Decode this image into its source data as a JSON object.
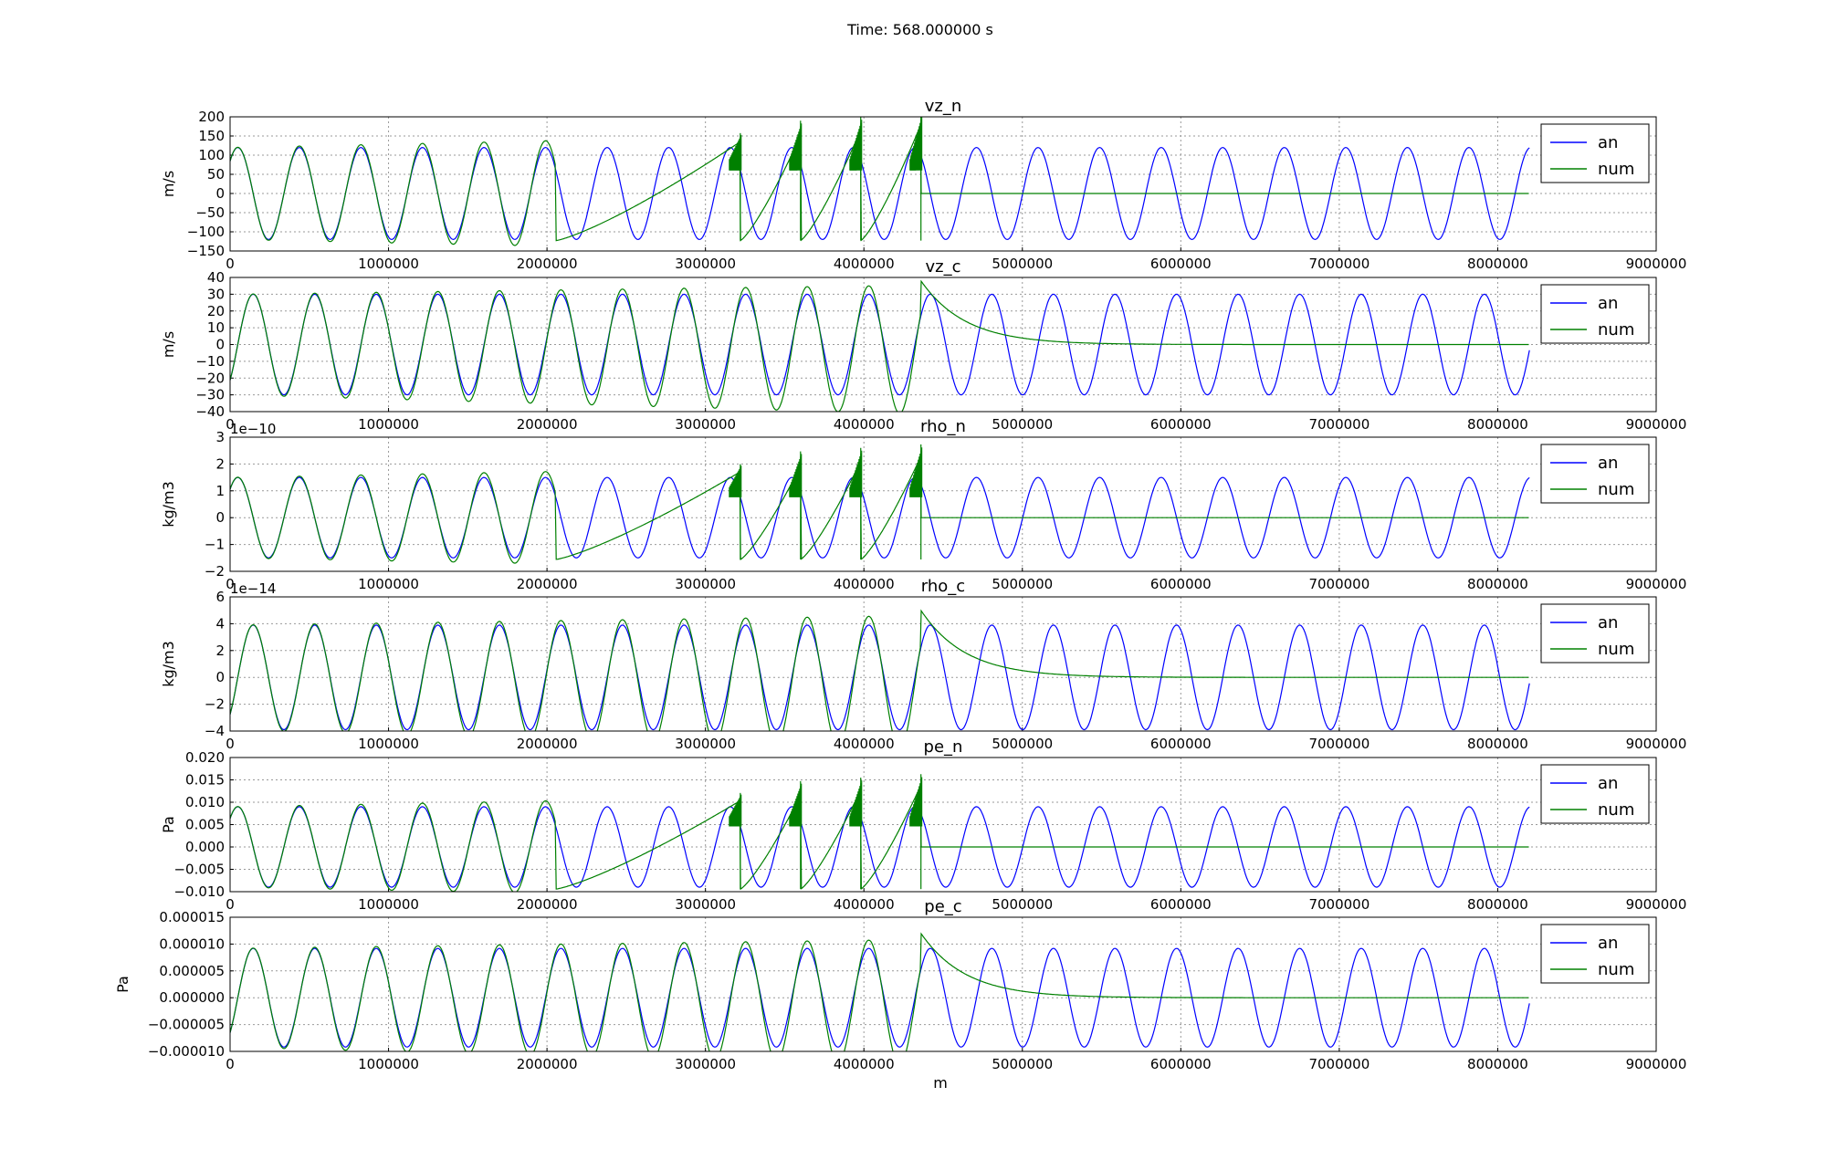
{
  "suptitle": "Time: 568.000000 s",
  "xlabel": "m",
  "xticks": [
    "0",
    "1000000",
    "2000000",
    "3000000",
    "4000000",
    "5000000",
    "6000000",
    "7000000",
    "8000000",
    "9000000"
  ],
  "legend_labels": [
    "an",
    "num"
  ],
  "colors": {
    "an": "#0000ff",
    "num": "#008000",
    "grid": "#999999"
  },
  "chart_data": [
    {
      "type": "line",
      "title": "vz_n",
      "ylabel": "m/s",
      "offset_label": "",
      "xlim": [
        0,
        9000000
      ],
      "ylim": [
        -150,
        200
      ],
      "yticks": [
        "−150",
        "−100",
        "−50",
        "0",
        "50",
        "100",
        "150",
        "200"
      ],
      "grid": true,
      "legend": "top-right",
      "series": [
        {
          "name": "an",
          "amplitude": 120,
          "wavelength": 388500,
          "phase_deg": 45,
          "x_end": 8200000
        },
        {
          "name": "num",
          "model": "steepened",
          "front_x": 4360000,
          "peak": 150,
          "spike": 200,
          "shock_x": [
            3220000,
            3600000,
            3980000,
            4360000
          ],
          "after_front": 0
        }
      ]
    },
    {
      "type": "line",
      "title": "vz_c",
      "ylabel": "m/s",
      "offset_label": "",
      "xlim": [
        0,
        9000000
      ],
      "ylim": [
        -40,
        40
      ],
      "yticks": [
        "−40",
        "−30",
        "−20",
        "−10",
        "0",
        "10",
        "20",
        "30",
        "40"
      ],
      "grid": true,
      "legend": "top-right",
      "series": [
        {
          "name": "an",
          "amplitude": 30,
          "wavelength": 388500,
          "phase_deg": -45,
          "x_end": 8200000
        },
        {
          "name": "num",
          "model": "decaying",
          "front_x": 4360000,
          "front_value": 38,
          "after_front": 0
        }
      ]
    },
    {
      "type": "line",
      "title": "rho_n",
      "ylabel": "kg/m3",
      "offset_label": "1e−10",
      "xlim": [
        0,
        9000000
      ],
      "ylim": [
        -2,
        3
      ],
      "yticks": [
        "−2",
        "−1",
        "0",
        "1",
        "2",
        "3"
      ],
      "grid": true,
      "legend": "top-right",
      "series": [
        {
          "name": "an",
          "amplitude": 1.5,
          "wavelength": 388500,
          "phase_deg": 45,
          "x_end": 8200000
        },
        {
          "name": "num",
          "model": "steepened",
          "front_x": 4360000,
          "peak": 1.9,
          "spike": 2.6,
          "shock_x": [
            3220000,
            3600000,
            3980000,
            4360000
          ],
          "after_front": 0
        }
      ]
    },
    {
      "type": "line",
      "title": "rho_c",
      "ylabel": "kg/m3",
      "offset_label": "1e−14",
      "xlim": [
        0,
        9000000
      ],
      "ylim": [
        -4,
        6
      ],
      "yticks": [
        "−4",
        "−2",
        "0",
        "2",
        "4",
        "6"
      ],
      "grid": true,
      "legend": "top-right",
      "series": [
        {
          "name": "an",
          "amplitude": 3.9,
          "wavelength": 388500,
          "phase_deg": -45,
          "x_end": 8200000
        },
        {
          "name": "num",
          "model": "decaying",
          "front_x": 4360000,
          "front_value": 5,
          "after_front": 0
        }
      ]
    },
    {
      "type": "line",
      "title": "pe_n",
      "ylabel": "Pa",
      "offset_label": "",
      "xlim": [
        0,
        9000000
      ],
      "ylim": [
        -0.01,
        0.02
      ],
      "yticks": [
        "−0.010",
        "−0.005",
        "0.000",
        "0.005",
        "0.010",
        "0.015",
        "0.020"
      ],
      "grid": true,
      "legend": "top-right",
      "series": [
        {
          "name": "an",
          "amplitude": 0.009,
          "wavelength": 388500,
          "phase_deg": 45,
          "x_end": 8200000
        },
        {
          "name": "num",
          "model": "steepened",
          "front_x": 4360000,
          "peak": 0.0115,
          "spike": 0.0155,
          "shock_x": [
            3220000,
            3600000,
            3980000,
            4360000
          ],
          "after_front": 0
        }
      ]
    },
    {
      "type": "line",
      "title": "pe_c",
      "ylabel": "Pa",
      "offset_label": "",
      "xlim": [
        0,
        9000000
      ],
      "ylim": [
        -1e-05,
        1.5e-05
      ],
      "yticks": [
        "−0.000010",
        "−0.000005",
        "0.000000",
        "0.000005",
        "0.000010",
        "0.000015"
      ],
      "grid": true,
      "legend": "top-right",
      "series": [
        {
          "name": "an",
          "amplitude": 9.2e-06,
          "wavelength": 388500,
          "phase_deg": -45,
          "x_end": 8200000
        },
        {
          "name": "num",
          "model": "decaying",
          "front_x": 4360000,
          "front_value": 1.2e-05,
          "after_front": 0
        }
      ]
    }
  ]
}
